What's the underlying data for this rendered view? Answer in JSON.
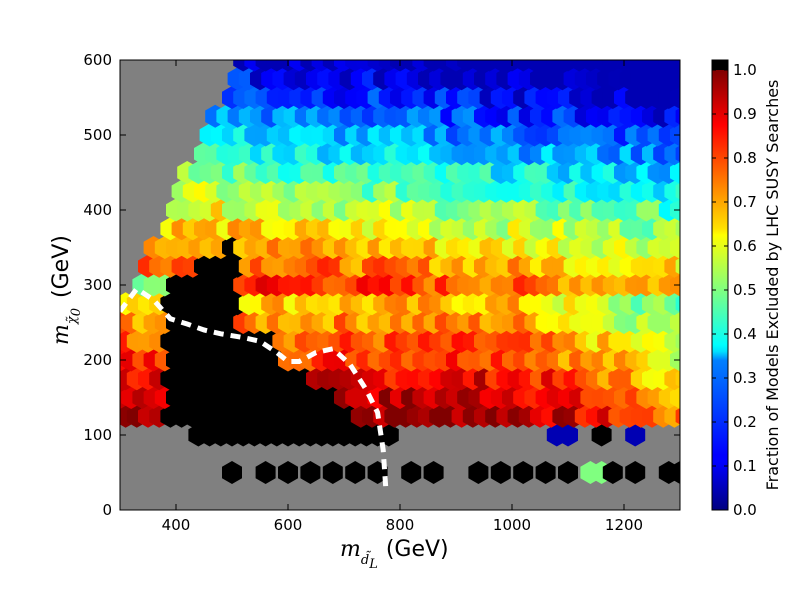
{
  "chart_data": {
    "type": "heatmap",
    "subtype": "hexbin",
    "xlabel": {
      "symbol": "m",
      "subscript": "d̃",
      "subscript2": "L",
      "unit": "(GeV)"
    },
    "ylabel": {
      "symbol": "m",
      "subscript": "χ̃",
      "subscript2": "0",
      "unit": "(GeV)"
    },
    "xlim": [
      300,
      1300
    ],
    "ylim": [
      0,
      600
    ],
    "x_ticks": [
      400,
      600,
      800,
      1000,
      1200
    ],
    "y_ticks": [
      0,
      100,
      200,
      300,
      400,
      500,
      600
    ],
    "x_tick_labels": [
      "400",
      "600",
      "800",
      "1000",
      "1200"
    ],
    "y_tick_labels": [
      "0",
      "100",
      "200",
      "300",
      "400",
      "500",
      "600"
    ],
    "background_color": "#808080",
    "no_data_region": "gray",
    "colorbar": {
      "label": "Fraction of Models Excluded by LHC SUSY Searches",
      "range": [
        0.0,
        1.0
      ],
      "ticks": [
        0.0,
        0.1,
        0.2,
        0.3,
        0.4,
        0.5,
        0.6,
        0.7,
        0.8,
        0.9,
        1.0
      ],
      "tick_labels": [
        "0.0",
        "0.1",
        "0.2",
        "0.3",
        "0.4",
        "0.5",
        "0.6",
        "0.7",
        "0.8",
        "0.9",
        "1.0"
      ],
      "colormap": "jet",
      "over_color": "#000000"
    },
    "hexbin": {
      "columns": [
        {
          "x": 300,
          "cells": []
        },
        {
          "x": 320,
          "cells": []
        },
        {
          "x": 340,
          "cells": []
        },
        {
          "x": 360,
          "cells": []
        },
        {
          "x": 380,
          "cells": [
            [
              330,
              -1
            ],
            [
              360,
              -1
            ],
            [
              390,
              -1
            ]
          ]
        },
        {
          "x": 400,
          "cells": [
            [
              270,
              -1
            ],
            [
              300,
              -1
            ],
            [
              330,
              -1
            ],
            [
              360,
              -1
            ],
            [
              390,
              -1
            ],
            [
              420,
              -1
            ],
            [
              450,
              -1
            ],
            [
              480,
              -1
            ],
            [
              510,
              -1
            ],
            [
              540,
              -1
            ],
            [
              570,
              -1
            ],
            [
              600,
              -1
            ],
            [
              630,
              -1
            ],
            [
              660,
              -1
            ],
            [
              690,
              -1
            ],
            [
              720,
              -1
            ],
            [
              750,
              -1
            ],
            [
              780,
              -1
            ],
            [
              810,
              -1
            ],
            [
              840,
              -1
            ],
            [
              870,
              -1
            ],
            [
              900,
              -1
            ],
            [
              930,
              -1
            ],
            [
              960,
              -1
            ],
            [
              990,
              -1
            ],
            [
              1020,
              -1
            ],
            [
              1050,
              -1
            ],
            [
              1080,
              -1
            ],
            [
              1110,
              -1
            ],
            [
              1140,
              -1
            ],
            [
              1170,
              -1
            ],
            [
              1200,
              -1
            ],
            [
              1230,
              -1
            ],
            [
              1260,
              -1
            ],
            [
              1290,
              -1
            ]
          ]
        }
      ],
      "pattern": "generated"
    },
    "exclusion_contour": {
      "style": "dashed",
      "color": "#ffffff",
      "points": [
        [
          300,
          265
        ],
        [
          330,
          295
        ],
        [
          360,
          280
        ],
        [
          390,
          255
        ],
        [
          420,
          248
        ],
        [
          450,
          240
        ],
        [
          480,
          235
        ],
        [
          520,
          230
        ],
        [
          550,
          225
        ],
        [
          580,
          210
        ],
        [
          600,
          198
        ],
        [
          620,
          198
        ],
        [
          650,
          210
        ],
        [
          680,
          215
        ],
        [
          710,
          195
        ],
        [
          740,
          160
        ],
        [
          760,
          130
        ],
        [
          770,
          80
        ],
        [
          775,
          25
        ]
      ]
    }
  }
}
